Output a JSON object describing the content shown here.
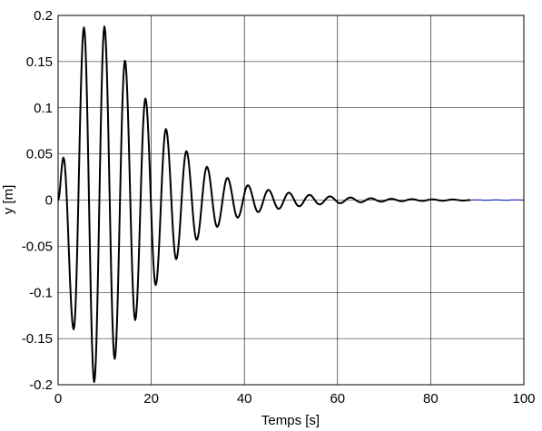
{
  "chart_data": {
    "type": "line",
    "title": "",
    "xlabel": "Temps [s]",
    "ylabel": "y [m]",
    "xlim": [
      0,
      100
    ],
    "ylim": [
      -0.2,
      0.2
    ],
    "grid": true,
    "xticks": [
      "0",
      "20",
      "40",
      "60",
      "80",
      "100"
    ],
    "yticks": [
      "0.2",
      "0.15",
      "0.1",
      "0.05",
      "0",
      "-0.05",
      "-0.1",
      "-0.15",
      "-0.2"
    ],
    "series": [
      {
        "color": "#000000",
        "x": [
          0.0,
          1.15,
          3.35,
          5.55,
          7.75,
          9.95,
          12.15,
          14.35,
          16.55,
          18.75,
          20.95,
          23.15,
          25.35,
          27.55,
          29.75,
          31.95,
          34.15,
          36.35,
          38.55,
          40.75,
          42.95,
          45.15,
          47.35,
          49.55,
          51.75,
          53.95,
          56.15,
          58.35,
          60.55,
          62.75,
          64.95,
          67.15,
          69.35,
          71.55,
          73.75,
          75.95,
          78.15,
          80.35,
          82.55,
          84.75,
          86.95,
          88.5
        ],
        "y": [
          0.0,
          0.046,
          -0.14,
          0.187,
          -0.197,
          0.188,
          -0.172,
          0.151,
          -0.13,
          0.11,
          -0.092,
          0.077,
          -0.064,
          0.053,
          -0.043,
          0.036,
          -0.029,
          0.024,
          -0.019,
          0.016,
          -0.013,
          0.011,
          -0.0095,
          0.008,
          -0.0067,
          0.0056,
          -0.0047,
          0.004,
          -0.0034,
          0.0028,
          -0.0024,
          0.002,
          -0.0017,
          0.0014,
          -0.0012,
          0.001,
          -0.0009,
          0.0008,
          -0.0007,
          0.0006,
          -0.0005,
          0.0
        ]
      },
      {
        "color": "#1f2fbf",
        "x": [
          88.5,
          90,
          92,
          94,
          96,
          98,
          100
        ],
        "y": [
          0.0,
          0.0002,
          -0.0002,
          0.0002,
          -0.0002,
          0.0002,
          0.0
        ]
      }
    ]
  }
}
